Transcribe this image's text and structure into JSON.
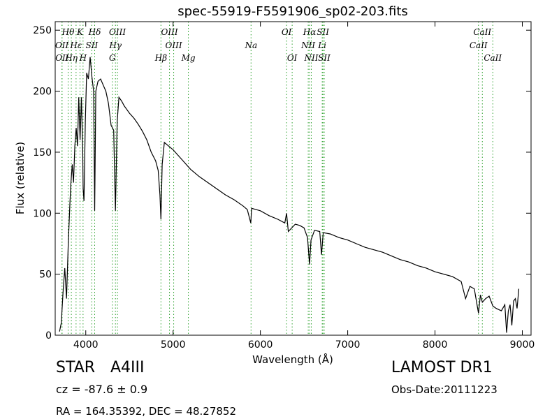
{
  "chart_data": {
    "type": "line",
    "title": "spec-55919-F5591906_sp02-203.fits",
    "xlabel": "Wavelength (Å)",
    "ylabel": "Flux (relative)",
    "xlim": [
      3650,
      9100
    ],
    "ylim": [
      0,
      257
    ],
    "x_ticks": [
      4000,
      5000,
      6000,
      7000,
      8000,
      9000
    ],
    "y_ticks": [
      0,
      50,
      100,
      150,
      200,
      250
    ],
    "grid": false,
    "line_color": "#000000",
    "marker_line_color": "#2ca02c",
    "series": [
      {
        "x": [
          3700,
          3720,
          3740,
          3760,
          3780,
          3800,
          3820,
          3830,
          3845,
          3860,
          3875,
          3890,
          3905,
          3920,
          3935,
          3950,
          3965,
          3970,
          3980,
          3995,
          4010,
          4030,
          4050,
          4070,
          4090,
          4102,
          4115,
          4140,
          4170,
          4200,
          4230,
          4260,
          4290,
          4320,
          4340,
          4360,
          4380,
          4410,
          4440,
          4470,
          4500,
          4550,
          4600,
          4650,
          4700,
          4750,
          4800,
          4830,
          4850,
          4861,
          4875,
          4900,
          4950,
          5000,
          5050,
          5100,
          5150,
          5200,
          5300,
          5400,
          5500,
          5600,
          5700,
          5800,
          5850,
          5890,
          5900,
          5950,
          6000,
          6100,
          6200,
          6280,
          6300,
          6320,
          6400,
          6450,
          6500,
          6540,
          6563,
          6580,
          6620,
          6680,
          6700,
          6720,
          6800,
          6900,
          7000,
          7100,
          7200,
          7300,
          7400,
          7500,
          7600,
          7700,
          7800,
          7900,
          8000,
          8100,
          8200,
          8300,
          8350,
          8400,
          8450,
          8498,
          8520,
          8542,
          8580,
          8620,
          8662,
          8700,
          8760,
          8800,
          8820,
          8840,
          8860,
          8880,
          8900,
          8920,
          8940,
          8960
        ],
        "y": [
          3,
          10,
          35,
          55,
          30,
          75,
          110,
          125,
          140,
          125,
          155,
          170,
          155,
          195,
          160,
          195,
          150,
          120,
          110,
          175,
          215,
          210,
          228,
          212,
          200,
          102,
          200,
          208,
          210,
          205,
          200,
          190,
          172,
          168,
          102,
          175,
          195,
          192,
          188,
          185,
          182,
          178,
          173,
          167,
          160,
          150,
          143,
          135,
          115,
          95,
          140,
          158,
          155,
          152,
          148,
          144,
          140,
          136,
          130,
          125,
          120,
          115,
          111,
          106,
          103,
          92,
          104,
          103,
          102,
          98,
          95,
          92,
          100,
          85,
          91,
          90,
          88,
          80,
          58,
          78,
          86,
          85,
          66,
          84,
          83,
          80,
          78,
          75,
          72,
          70,
          68,
          65,
          62,
          60,
          57,
          55,
          52,
          50,
          48,
          44,
          30,
          40,
          38,
          18,
          33,
          27,
          30,
          32,
          24,
          22,
          20,
          25,
          2,
          20,
          25,
          8,
          28,
          30,
          22,
          38
        ]
      }
    ],
    "line_markers": [
      {
        "label": "Hθ",
        "x": 3798,
        "row": 0
      },
      {
        "label": "OII",
        "x": 3727,
        "row": 1
      },
      {
        "label": "OII",
        "x": 3729,
        "row": 2
      },
      {
        "label": "Hη",
        "x": 3835,
        "row": 2
      },
      {
        "label": "K",
        "x": 3934,
        "row": 0
      },
      {
        "label": "Hε",
        "x": 3889,
        "row": 1
      },
      {
        "label": "H",
        "x": 3969,
        "row": 2
      },
      {
        "label": "SII",
        "x": 4069,
        "row": 1
      },
      {
        "label": "Hδ",
        "x": 4102,
        "row": 0
      },
      {
        "label": "OIII",
        "x": 4363,
        "row": 0
      },
      {
        "label": "Hγ",
        "x": 4340,
        "row": 1
      },
      {
        "label": "G",
        "x": 4305,
        "row": 2
      },
      {
        "label": "OIII",
        "x": 4959,
        "row": 0
      },
      {
        "label": "OIII",
        "x": 5007,
        "row": 1
      },
      {
        "label": "Hβ",
        "x": 4861,
        "row": 2
      },
      {
        "label": "Mg",
        "x": 5175,
        "row": 2
      },
      {
        "label": "Na",
        "x": 5893,
        "row": 1
      },
      {
        "label": "OI",
        "x": 6300,
        "row": 0
      },
      {
        "label": "OI",
        "x": 6364,
        "row": 2
      },
      {
        "label": "Hα",
        "x": 6563,
        "row": 0
      },
      {
        "label": "NII",
        "x": 6548,
        "row": 1
      },
      {
        "label": "NII",
        "x": 6583,
        "row": 2
      },
      {
        "label": "SII",
        "x": 6716,
        "row": 0
      },
      {
        "label": "Li",
        "x": 6708,
        "row": 1
      },
      {
        "label": "SII",
        "x": 6731,
        "row": 2
      },
      {
        "label": "CaII",
        "x": 8542,
        "row": 0
      },
      {
        "label": "CaII",
        "x": 8498,
        "row": 1
      },
      {
        "label": "CaII",
        "x": 8662,
        "row": 2
      }
    ]
  },
  "info": {
    "object_class": "STAR",
    "subclass": "A4III",
    "redshift": "cz = -87.6 ± 0.9",
    "coords": "RA = 164.35392, DEC = 48.27852",
    "survey": "LAMOST DR1",
    "obs_date": "Obs-Date:20111223"
  }
}
